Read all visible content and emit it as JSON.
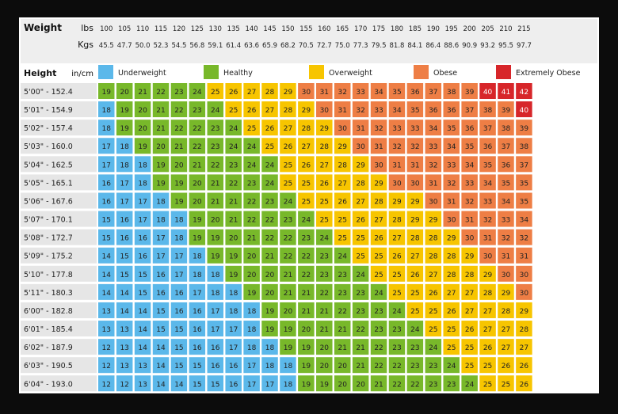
{
  "chart_data": {
    "type": "heatmap",
    "header": {
      "weight_label": "Weight",
      "lbs_label": "lbs",
      "kgs_label": "Kgs",
      "height_label": "Height",
      "unit_label": "in/cm"
    },
    "lbs": [
      "100",
      "105",
      "110",
      "115",
      "120",
      "125",
      "130",
      "135",
      "140",
      "145",
      "150",
      "155",
      "160",
      "165",
      "170",
      "175",
      "180",
      "185",
      "190",
      "195",
      "200",
      "205",
      "210",
      "215"
    ],
    "kgs": [
      "45.5",
      "47.7",
      "50.0",
      "52.3",
      "54.5",
      "56.8",
      "59.1",
      "61.4",
      "63.6",
      "65.9",
      "68.2",
      "70.5",
      "72.7",
      "75.0",
      "77.3",
      "79.5",
      "81.8",
      "84.1",
      "86.4",
      "88.6",
      "90.9",
      "93.2",
      "95.5",
      "97.7"
    ],
    "heights": [
      "5'00\" - 152.4",
      "5'01\" - 154.9",
      "5'02\" - 157.4",
      "5'03\" - 160.0",
      "5'04\" - 162.5",
      "5'05\" - 165.1",
      "5'06\" - 167.6",
      "5'07\" - 170.1",
      "5'08\" - 172.7",
      "5'09\" - 175.2",
      "5'10\" - 177.8",
      "5'11\" - 180.3",
      "6'00\" - 182.8",
      "6'01\" - 185.4",
      "6'02\" - 187.9",
      "6'03\" - 190.5",
      "6'04\" - 193.0"
    ],
    "legend": [
      {
        "label": "Underweight",
        "color": "#5bb8ea"
      },
      {
        "label": "Healthy",
        "color": "#78b82a"
      },
      {
        "label": "Overweight",
        "color": "#f7c500"
      },
      {
        "label": "Obese",
        "color": "#ee7e45"
      },
      {
        "label": "Extremely Obese",
        "color": "#d7262a"
      }
    ],
    "values": [
      [
        19,
        20,
        21,
        22,
        23,
        24,
        25,
        26,
        27,
        28,
        29,
        30,
        31,
        32,
        33,
        34,
        35,
        36,
        37,
        38,
        39,
        40,
        41,
        42
      ],
      [
        18,
        19,
        20,
        21,
        22,
        23,
        24,
        25,
        26,
        27,
        28,
        29,
        30,
        31,
        32,
        33,
        34,
        35,
        36,
        36,
        37,
        38,
        39,
        40
      ],
      [
        18,
        19,
        20,
        21,
        22,
        22,
        23,
        24,
        25,
        26,
        27,
        28,
        29,
        30,
        31,
        32,
        33,
        33,
        34,
        35,
        36,
        37,
        38,
        39
      ],
      [
        17,
        18,
        19,
        20,
        21,
        22,
        23,
        24,
        24,
        25,
        26,
        27,
        28,
        29,
        30,
        31,
        32,
        32,
        33,
        34,
        35,
        36,
        37,
        38
      ],
      [
        17,
        18,
        18,
        19,
        20,
        21,
        22,
        23,
        24,
        24,
        25,
        26,
        27,
        28,
        29,
        30,
        31,
        31,
        32,
        33,
        34,
        35,
        36,
        37
      ],
      [
        16,
        17,
        18,
        19,
        19,
        20,
        21,
        22,
        23,
        24,
        25,
        25,
        26,
        27,
        28,
        29,
        30,
        30,
        31,
        32,
        33,
        34,
        35,
        35
      ],
      [
        16,
        17,
        17,
        18,
        19,
        20,
        21,
        21,
        22,
        23,
        24,
        25,
        25,
        26,
        27,
        28,
        29,
        29,
        30,
        31,
        32,
        33,
        34,
        35
      ],
      [
        15,
        16,
        17,
        18,
        18,
        19,
        20,
        21,
        22,
        22,
        23,
        24,
        25,
        25,
        26,
        27,
        28,
        29,
        29,
        30,
        31,
        32,
        33,
        34
      ],
      [
        15,
        16,
        16,
        17,
        18,
        19,
        19,
        20,
        21,
        22,
        22,
        23,
        24,
        25,
        25,
        26,
        27,
        28,
        28,
        29,
        30,
        31,
        32,
        32
      ],
      [
        14,
        15,
        16,
        17,
        17,
        18,
        19,
        19,
        20,
        21,
        22,
        22,
        23,
        24,
        25,
        25,
        26,
        27,
        28,
        28,
        29,
        30,
        31,
        31
      ],
      [
        14,
        15,
        15,
        16,
        17,
        18,
        18,
        19,
        20,
        20,
        21,
        22,
        23,
        23,
        24,
        25,
        25,
        26,
        27,
        28,
        28,
        29,
        30,
        30
      ],
      [
        14,
        14,
        15,
        16,
        16,
        17,
        18,
        18,
        19,
        20,
        21,
        21,
        22,
        23,
        23,
        24,
        25,
        25,
        26,
        27,
        27,
        28,
        29,
        30
      ],
      [
        13,
        14,
        14,
        15,
        16,
        16,
        17,
        18,
        18,
        19,
        20,
        21,
        21,
        22,
        23,
        23,
        24,
        25,
        25,
        26,
        27,
        27,
        28,
        29
      ],
      [
        13,
        13,
        14,
        15,
        15,
        16,
        17,
        17,
        18,
        19,
        19,
        20,
        21,
        21,
        22,
        23,
        23,
        24,
        25,
        25,
        26,
        27,
        27,
        28
      ],
      [
        12,
        13,
        14,
        14,
        15,
        16,
        16,
        17,
        18,
        18,
        19,
        19,
        20,
        21,
        21,
        22,
        23,
        23,
        24,
        25,
        25,
        26,
        27,
        27
      ],
      [
        12,
        13,
        13,
        14,
        15,
        15,
        16,
        16,
        17,
        18,
        18,
        19,
        20,
        20,
        21,
        22,
        22,
        23,
        23,
        24,
        25,
        25,
        26,
        26
      ],
      [
        12,
        12,
        13,
        14,
        14,
        15,
        15,
        16,
        17,
        17,
        18,
        19,
        19,
        20,
        20,
        21,
        22,
        22,
        23,
        23,
        24,
        25,
        25,
        26
      ]
    ],
    "colors": {
      "background": "#0c0c0c",
      "header_bg": "#eeeeee",
      "label_bg": "#e6e6e6",
      "extreme_text": "#ffffff"
    }
  }
}
